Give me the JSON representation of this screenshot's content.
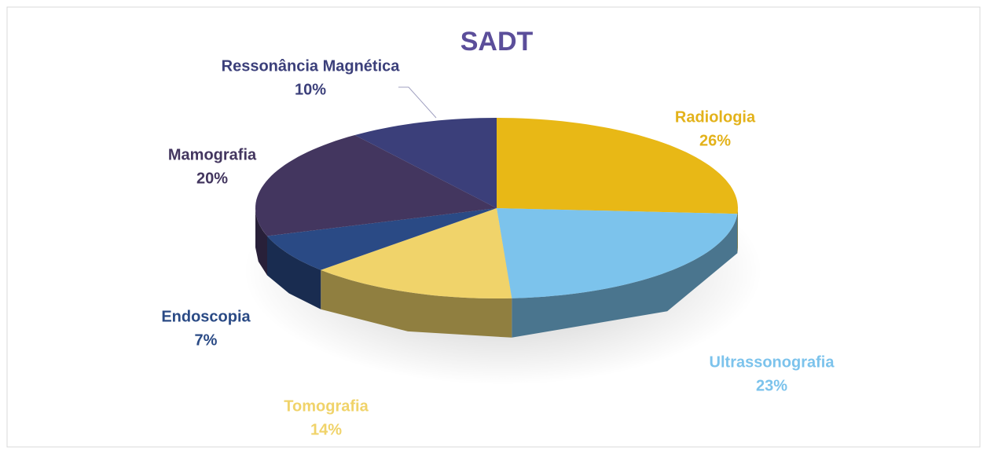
{
  "chart_data": {
    "type": "pie",
    "title": "SADT",
    "categories": [
      "Radiologia",
      "Ultrassonografia",
      "Tomografia",
      "Endoscopia",
      "Mamografia",
      "Ressonância Magnética"
    ],
    "values": [
      26,
      23,
      14,
      7,
      20,
      10
    ],
    "value_labels": [
      "26%",
      "23%",
      "14%",
      "7%",
      "20%",
      "10%"
    ],
    "colors": [
      "#e8b816",
      "#7cc3ec",
      "#f0d36a",
      "#2a4a85",
      "#43365f",
      "#3b3f7a"
    ]
  }
}
